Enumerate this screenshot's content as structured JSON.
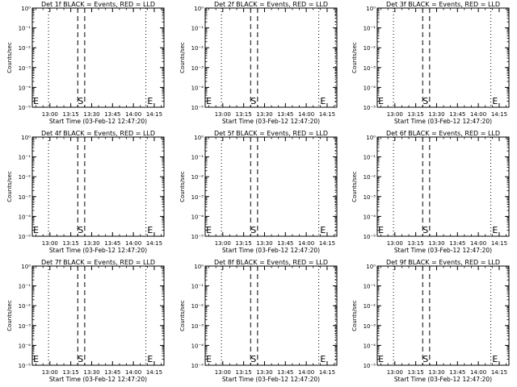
{
  "chart_data": [
    {
      "type": "line",
      "title": "Det 1f BLACK = Events, RED = LLD",
      "ylabel": "Counts/sec",
      "xlabel": "Start Time (03-Feb-12 12:47:20)",
      "xticks": [
        "13:00",
        "13:15",
        "13:30",
        "13:45",
        "14:00",
        "14:15"
      ],
      "ylog": true,
      "yticks": [
        "10⁰",
        "10⁻¹",
        "10⁻²",
        "10⁻³",
        "10⁻⁴",
        "10⁻⁵"
      ],
      "xlim": [
        "12:47:20",
        "14:22:00"
      ],
      "ylim": [
        1,
        1e-05
      ],
      "dotted_lines": [
        "12:59",
        "14:09"
      ],
      "dashed_lines": [
        "13:20",
        "13:25"
      ],
      "markers": [
        {
          "label": "E",
          "x": "12:48"
        },
        {
          "label": "S",
          "x": "13:20"
        },
        {
          "label": "E",
          "x": "14:10"
        }
      ],
      "series": []
    },
    {
      "type": "line",
      "title": "Det 2f BLACK = Events, RED = LLD",
      "ylabel": "Counts/sec",
      "xlabel": "Start Time (03-Feb-12 12:47:20)",
      "xticks": [
        "13:00",
        "13:15",
        "13:30",
        "13:45",
        "14:00",
        "14:15"
      ],
      "ylog": true,
      "yticks": [
        "10⁰",
        "10⁻¹",
        "10⁻²",
        "10⁻³",
        "10⁻⁴",
        "10⁻⁵"
      ],
      "xlim": [
        "12:47:20",
        "14:22:00"
      ],
      "ylim": [
        1,
        1e-05
      ],
      "dotted_lines": [
        "12:59",
        "14:09",
        "14:21"
      ],
      "dashed_lines": [
        "13:20",
        "13:25"
      ],
      "markers": [
        {
          "label": "E",
          "x": "12:48"
        },
        {
          "label": "S",
          "x": "13:20"
        },
        {
          "label": "E",
          "x": "14:10"
        }
      ],
      "series": []
    },
    {
      "type": "line",
      "title": "Det 3f BLACK = Events, RED = LLD",
      "ylabel": "Counts/sec",
      "xlabel": "Start Time (03-Feb-12 12:47:20)",
      "xticks": [
        "13:00",
        "13:15",
        "13:30",
        "13:45",
        "14:00",
        "14:15"
      ],
      "ylog": true,
      "yticks": [
        "10⁰",
        "10⁻¹",
        "10⁻²",
        "10⁻³",
        "10⁻⁴",
        "10⁻⁵"
      ],
      "xlim": [
        "12:47:20",
        "14:22:00"
      ],
      "ylim": [
        1,
        1e-05
      ],
      "dotted_lines": [
        "12:59",
        "14:09"
      ],
      "dashed_lines": [
        "13:20",
        "13:25"
      ],
      "markers": [
        {
          "label": "E",
          "x": "12:48"
        },
        {
          "label": "S",
          "x": "13:20"
        },
        {
          "label": "E",
          "x": "14:10"
        }
      ],
      "series": []
    },
    {
      "type": "line",
      "title": "Det 4f BLACK = Events, RED = LLD",
      "ylabel": "Counts/sec",
      "xlabel": "Start Time (03-Feb-12 12:47:20)",
      "xticks": [
        "13:00",
        "13:15",
        "13:30",
        "13:45",
        "14:00",
        "14:15"
      ],
      "ylog": true,
      "yticks": [
        "10⁰",
        "10⁻¹",
        "10⁻²",
        "10⁻³",
        "10⁻⁴",
        "10⁻⁵"
      ],
      "xlim": [
        "12:47:20",
        "14:22:00"
      ],
      "ylim": [
        1,
        1e-05
      ],
      "dotted_lines": [
        "12:59",
        "14:09"
      ],
      "dashed_lines": [
        "13:20",
        "13:25"
      ],
      "markers": [
        {
          "label": "E",
          "x": "12:48"
        },
        {
          "label": "S",
          "x": "13:20"
        },
        {
          "label": "E",
          "x": "14:10"
        }
      ],
      "series": []
    },
    {
      "type": "line",
      "title": "Det 5f BLACK = Events, RED = LLD",
      "ylabel": "Counts/sec",
      "xlabel": "Start Time (03-Feb-12 12:47:20)",
      "xticks": [
        "13:00",
        "13:15",
        "13:30",
        "13:45",
        "14:00",
        "14:15"
      ],
      "ylog": true,
      "yticks": [
        "10⁰",
        "10⁻¹",
        "10⁻²",
        "10⁻³",
        "10⁻⁴",
        "10⁻⁵"
      ],
      "xlim": [
        "12:47:20",
        "14:22:00"
      ],
      "ylim": [
        1,
        1e-05
      ],
      "dotted_lines": [
        "12:59",
        "14:09",
        "14:21"
      ],
      "dashed_lines": [
        "13:20",
        "13:25"
      ],
      "markers": [
        {
          "label": "E",
          "x": "12:48"
        },
        {
          "label": "S",
          "x": "13:20"
        },
        {
          "label": "E",
          "x": "14:10"
        }
      ],
      "series": []
    },
    {
      "type": "line",
      "title": "Det 6f BLACK = Events, RED = LLD",
      "ylabel": "Counts/sec",
      "xlabel": "Start Time (03-Feb-12 12:47:20)",
      "xticks": [
        "13:00",
        "13:15",
        "13:30",
        "13:45",
        "14:00",
        "14:15"
      ],
      "ylog": true,
      "yticks": [
        "10⁰",
        "10⁻¹",
        "10⁻²",
        "10⁻³",
        "10⁻⁴",
        "10⁻⁵"
      ],
      "xlim": [
        "12:47:20",
        "14:22:00"
      ],
      "ylim": [
        1,
        1e-05
      ],
      "dotted_lines": [
        "12:59",
        "14:09"
      ],
      "dashed_lines": [
        "13:20",
        "13:25"
      ],
      "markers": [
        {
          "label": "E",
          "x": "12:48"
        },
        {
          "label": "S",
          "x": "13:20"
        },
        {
          "label": "E",
          "x": "14:10"
        }
      ],
      "series": []
    },
    {
      "type": "line",
      "title": "Det 7f BLACK = Events, RED = LLD",
      "ylabel": "Counts/sec",
      "xlabel": "Start Time (03-Feb-12 12:47:20)",
      "xticks": [
        "13:00",
        "13:15",
        "13:30",
        "13:45",
        "14:00",
        "14:15"
      ],
      "ylog": true,
      "yticks": [
        "10⁰",
        "10⁻¹",
        "10⁻²",
        "10⁻³",
        "10⁻⁴",
        "10⁻⁵"
      ],
      "xlim": [
        "12:47:20",
        "14:22:00"
      ],
      "ylim": [
        1,
        1e-05
      ],
      "dotted_lines": [
        "12:59",
        "14:09"
      ],
      "dashed_lines": [
        "13:20",
        "13:25"
      ],
      "markers": [
        {
          "label": "E",
          "x": "12:48"
        },
        {
          "label": "S",
          "x": "13:20"
        },
        {
          "label": "E",
          "x": "14:10"
        }
      ],
      "series": []
    },
    {
      "type": "line",
      "title": "Det 8f BLACK = Events, RED = LLD",
      "ylabel": "Counts/sec",
      "xlabel": "Start Time (03-Feb-12 12:47:20)",
      "xticks": [
        "13:00",
        "13:15",
        "13:30",
        "13:45",
        "14:00",
        "14:15"
      ],
      "ylog": true,
      "yticks": [
        "10⁰",
        "10⁻¹",
        "10⁻²",
        "10⁻³",
        "10⁻⁴",
        "10⁻⁵"
      ],
      "xlim": [
        "12:47:20",
        "14:22:00"
      ],
      "ylim": [
        1,
        1e-05
      ],
      "dotted_lines": [
        "12:59",
        "14:09",
        "14:21"
      ],
      "dashed_lines": [
        "13:20",
        "13:25"
      ],
      "markers": [
        {
          "label": "E",
          "x": "12:48"
        },
        {
          "label": "S",
          "x": "13:20"
        },
        {
          "label": "E",
          "x": "14:10"
        }
      ],
      "series": []
    },
    {
      "type": "line",
      "title": "Det 9f BLACK = Events, RED = LLD",
      "ylabel": "Counts/sec",
      "xlabel": "Start Time (03-Feb-12 12:47:20)",
      "xticks": [
        "13:00",
        "13:15",
        "13:30",
        "13:45",
        "14:00",
        "14:15"
      ],
      "ylog": true,
      "yticks": [
        "10⁰",
        "10⁻¹",
        "10⁻²",
        "10⁻³",
        "10⁻⁴",
        "10⁻⁵"
      ],
      "xlim": [
        "12:47:20",
        "14:22:00"
      ],
      "ylim": [
        1,
        1e-05
      ],
      "dotted_lines": [
        "12:59",
        "14:09"
      ],
      "dashed_lines": [
        "13:20",
        "13:25"
      ],
      "markers": [
        {
          "label": "E",
          "x": "12:48"
        },
        {
          "label": "S",
          "x": "13:20"
        },
        {
          "label": "E",
          "x": "14:10"
        }
      ],
      "series": []
    }
  ]
}
